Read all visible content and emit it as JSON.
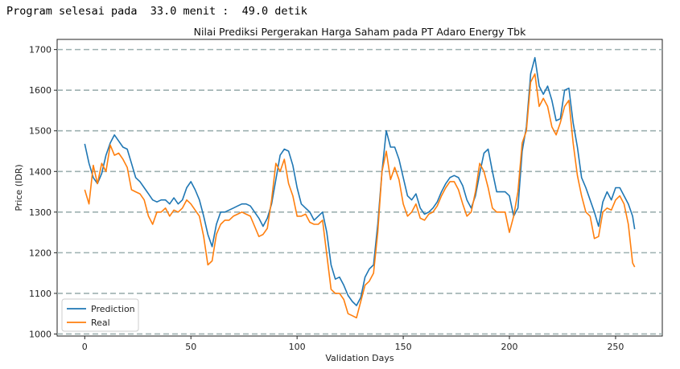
{
  "console": {
    "text": "Program selesai pada  33.0 menit :  49.0 detik"
  },
  "chart_data": {
    "type": "line",
    "title": "Nilai Prediksi Pergerakan Harga Saham pada PT Adaro Energy Tbk",
    "xlabel": "Validation Days",
    "ylabel": "Price (IDR)",
    "xlim": [
      -13,
      272
    ],
    "ylim": [
      995,
      1725
    ],
    "xticks": [
      0,
      50,
      100,
      150,
      200,
      250
    ],
    "yticks": [
      1000,
      1100,
      1200,
      1300,
      1400,
      1500,
      1600,
      1700
    ],
    "grid": "horizontal dashed",
    "legend_position": "lower-left",
    "series": [
      {
        "name": "Prediction",
        "color": "#1f77b4",
        "points": [
          [
            0,
            1468
          ],
          [
            2,
            1420
          ],
          [
            4,
            1385
          ],
          [
            6,
            1370
          ],
          [
            8,
            1395
          ],
          [
            10,
            1440
          ],
          [
            12,
            1470
          ],
          [
            14,
            1490
          ],
          [
            16,
            1475
          ],
          [
            18,
            1460
          ],
          [
            20,
            1455
          ],
          [
            22,
            1420
          ],
          [
            24,
            1385
          ],
          [
            26,
            1375
          ],
          [
            28,
            1360
          ],
          [
            30,
            1345
          ],
          [
            32,
            1330
          ],
          [
            34,
            1325
          ],
          [
            36,
            1330
          ],
          [
            38,
            1330
          ],
          [
            40,
            1320
          ],
          [
            42,
            1335
          ],
          [
            44,
            1320
          ],
          [
            46,
            1330
          ],
          [
            48,
            1360
          ],
          [
            50,
            1375
          ],
          [
            52,
            1355
          ],
          [
            54,
            1330
          ],
          [
            56,
            1290
          ],
          [
            58,
            1245
          ],
          [
            60,
            1215
          ],
          [
            62,
            1270
          ],
          [
            64,
            1300
          ],
          [
            66,
            1300
          ],
          [
            68,
            1305
          ],
          [
            70,
            1310
          ],
          [
            72,
            1315
          ],
          [
            74,
            1320
          ],
          [
            76,
            1320
          ],
          [
            78,
            1315
          ],
          [
            80,
            1300
          ],
          [
            82,
            1285
          ],
          [
            84,
            1265
          ],
          [
            86,
            1285
          ],
          [
            88,
            1320
          ],
          [
            90,
            1380
          ],
          [
            92,
            1440
          ],
          [
            94,
            1455
          ],
          [
            96,
            1450
          ],
          [
            98,
            1415
          ],
          [
            100,
            1360
          ],
          [
            102,
            1320
          ],
          [
            104,
            1310
          ],
          [
            106,
            1300
          ],
          [
            108,
            1280
          ],
          [
            110,
            1290
          ],
          [
            112,
            1300
          ],
          [
            114,
            1250
          ],
          [
            116,
            1170
          ],
          [
            118,
            1135
          ],
          [
            120,
            1140
          ],
          [
            122,
            1120
          ],
          [
            124,
            1095
          ],
          [
            126,
            1080
          ],
          [
            128,
            1070
          ],
          [
            130,
            1090
          ],
          [
            132,
            1140
          ],
          [
            134,
            1160
          ],
          [
            136,
            1170
          ],
          [
            138,
            1270
          ],
          [
            140,
            1400
          ],
          [
            142,
            1500
          ],
          [
            144,
            1460
          ],
          [
            146,
            1460
          ],
          [
            148,
            1430
          ],
          [
            150,
            1385
          ],
          [
            152,
            1340
          ],
          [
            154,
            1330
          ],
          [
            156,
            1345
          ],
          [
            158,
            1310
          ],
          [
            160,
            1295
          ],
          [
            162,
            1300
          ],
          [
            164,
            1310
          ],
          [
            166,
            1325
          ],
          [
            168,
            1350
          ],
          [
            170,
            1370
          ],
          [
            172,
            1385
          ],
          [
            174,
            1390
          ],
          [
            176,
            1385
          ],
          [
            178,
            1365
          ],
          [
            180,
            1330
          ],
          [
            182,
            1310
          ],
          [
            184,
            1340
          ],
          [
            186,
            1395
          ],
          [
            188,
            1445
          ],
          [
            190,
            1455
          ],
          [
            192,
            1400
          ],
          [
            194,
            1350
          ],
          [
            196,
            1350
          ],
          [
            198,
            1350
          ],
          [
            200,
            1340
          ],
          [
            202,
            1290
          ],
          [
            204,
            1310
          ],
          [
            206,
            1450
          ],
          [
            208,
            1510
          ],
          [
            210,
            1640
          ],
          [
            212,
            1680
          ],
          [
            214,
            1610
          ],
          [
            216,
            1590
          ],
          [
            218,
            1610
          ],
          [
            220,
            1575
          ],
          [
            222,
            1525
          ],
          [
            224,
            1530
          ],
          [
            226,
            1600
          ],
          [
            228,
            1605
          ],
          [
            230,
            1520
          ],
          [
            232,
            1460
          ],
          [
            234,
            1385
          ],
          [
            236,
            1360
          ],
          [
            238,
            1330
          ],
          [
            240,
            1300
          ],
          [
            242,
            1265
          ],
          [
            244,
            1325
          ],
          [
            246,
            1350
          ],
          [
            248,
            1330
          ],
          [
            250,
            1360
          ],
          [
            252,
            1360
          ],
          [
            254,
            1340
          ],
          [
            256,
            1320
          ],
          [
            258,
            1290
          ],
          [
            259,
            1258
          ]
        ]
      },
      {
        "name": "Real",
        "color": "#ff7f0e",
        "points": [
          [
            0,
            1355
          ],
          [
            2,
            1320
          ],
          [
            4,
            1415
          ],
          [
            6,
            1370
          ],
          [
            8,
            1420
          ],
          [
            10,
            1400
          ],
          [
            12,
            1465
          ],
          [
            14,
            1440
          ],
          [
            16,
            1445
          ],
          [
            18,
            1430
          ],
          [
            20,
            1410
          ],
          [
            22,
            1355
          ],
          [
            24,
            1350
          ],
          [
            26,
            1345
          ],
          [
            28,
            1330
          ],
          [
            30,
            1290
          ],
          [
            32,
            1270
          ],
          [
            34,
            1300
          ],
          [
            36,
            1300
          ],
          [
            38,
            1310
          ],
          [
            40,
            1290
          ],
          [
            42,
            1305
          ],
          [
            44,
            1300
          ],
          [
            46,
            1310
          ],
          [
            48,
            1330
          ],
          [
            50,
            1320
          ],
          [
            52,
            1305
          ],
          [
            54,
            1290
          ],
          [
            56,
            1240
          ],
          [
            58,
            1170
          ],
          [
            60,
            1180
          ],
          [
            62,
            1245
          ],
          [
            64,
            1270
          ],
          [
            66,
            1280
          ],
          [
            68,
            1280
          ],
          [
            70,
            1290
          ],
          [
            72,
            1295
          ],
          [
            74,
            1300
          ],
          [
            76,
            1295
          ],
          [
            78,
            1290
          ],
          [
            80,
            1265
          ],
          [
            82,
            1240
          ],
          [
            84,
            1245
          ],
          [
            86,
            1260
          ],
          [
            88,
            1330
          ],
          [
            90,
            1420
          ],
          [
            92,
            1400
          ],
          [
            94,
            1430
          ],
          [
            96,
            1370
          ],
          [
            98,
            1340
          ],
          [
            100,
            1290
          ],
          [
            102,
            1290
          ],
          [
            104,
            1295
          ],
          [
            106,
            1275
          ],
          [
            108,
            1270
          ],
          [
            110,
            1270
          ],
          [
            112,
            1280
          ],
          [
            114,
            1195
          ],
          [
            116,
            1110
          ],
          [
            118,
            1100
          ],
          [
            120,
            1100
          ],
          [
            122,
            1085
          ],
          [
            124,
            1050
          ],
          [
            126,
            1045
          ],
          [
            128,
            1040
          ],
          [
            130,
            1080
          ],
          [
            132,
            1120
          ],
          [
            134,
            1130
          ],
          [
            136,
            1150
          ],
          [
            138,
            1250
          ],
          [
            140,
            1400
          ],
          [
            142,
            1450
          ],
          [
            144,
            1380
          ],
          [
            146,
            1410
          ],
          [
            148,
            1380
          ],
          [
            150,
            1320
          ],
          [
            152,
            1290
          ],
          [
            154,
            1300
          ],
          [
            156,
            1320
          ],
          [
            158,
            1285
          ],
          [
            160,
            1280
          ],
          [
            162,
            1295
          ],
          [
            164,
            1300
          ],
          [
            166,
            1315
          ],
          [
            168,
            1340
          ],
          [
            170,
            1360
          ],
          [
            172,
            1375
          ],
          [
            174,
            1375
          ],
          [
            176,
            1355
          ],
          [
            178,
            1320
          ],
          [
            180,
            1290
          ],
          [
            182,
            1300
          ],
          [
            184,
            1350
          ],
          [
            186,
            1420
          ],
          [
            188,
            1400
          ],
          [
            190,
            1360
          ],
          [
            192,
            1310
          ],
          [
            194,
            1300
          ],
          [
            196,
            1300
          ],
          [
            198,
            1300
          ],
          [
            200,
            1250
          ],
          [
            202,
            1290
          ],
          [
            204,
            1350
          ],
          [
            206,
            1470
          ],
          [
            208,
            1500
          ],
          [
            210,
            1620
          ],
          [
            212,
            1640
          ],
          [
            214,
            1560
          ],
          [
            216,
            1580
          ],
          [
            218,
            1560
          ],
          [
            220,
            1510
          ],
          [
            222,
            1490
          ],
          [
            224,
            1520
          ],
          [
            226,
            1560
          ],
          [
            228,
            1575
          ],
          [
            230,
            1470
          ],
          [
            232,
            1390
          ],
          [
            234,
            1340
          ],
          [
            236,
            1300
          ],
          [
            238,
            1290
          ],
          [
            240,
            1235
          ],
          [
            242,
            1240
          ],
          [
            244,
            1300
          ],
          [
            246,
            1310
          ],
          [
            248,
            1305
          ],
          [
            250,
            1330
          ],
          [
            252,
            1340
          ],
          [
            254,
            1320
          ],
          [
            256,
            1270
          ],
          [
            258,
            1175
          ],
          [
            259,
            1165
          ]
        ]
      }
    ]
  }
}
